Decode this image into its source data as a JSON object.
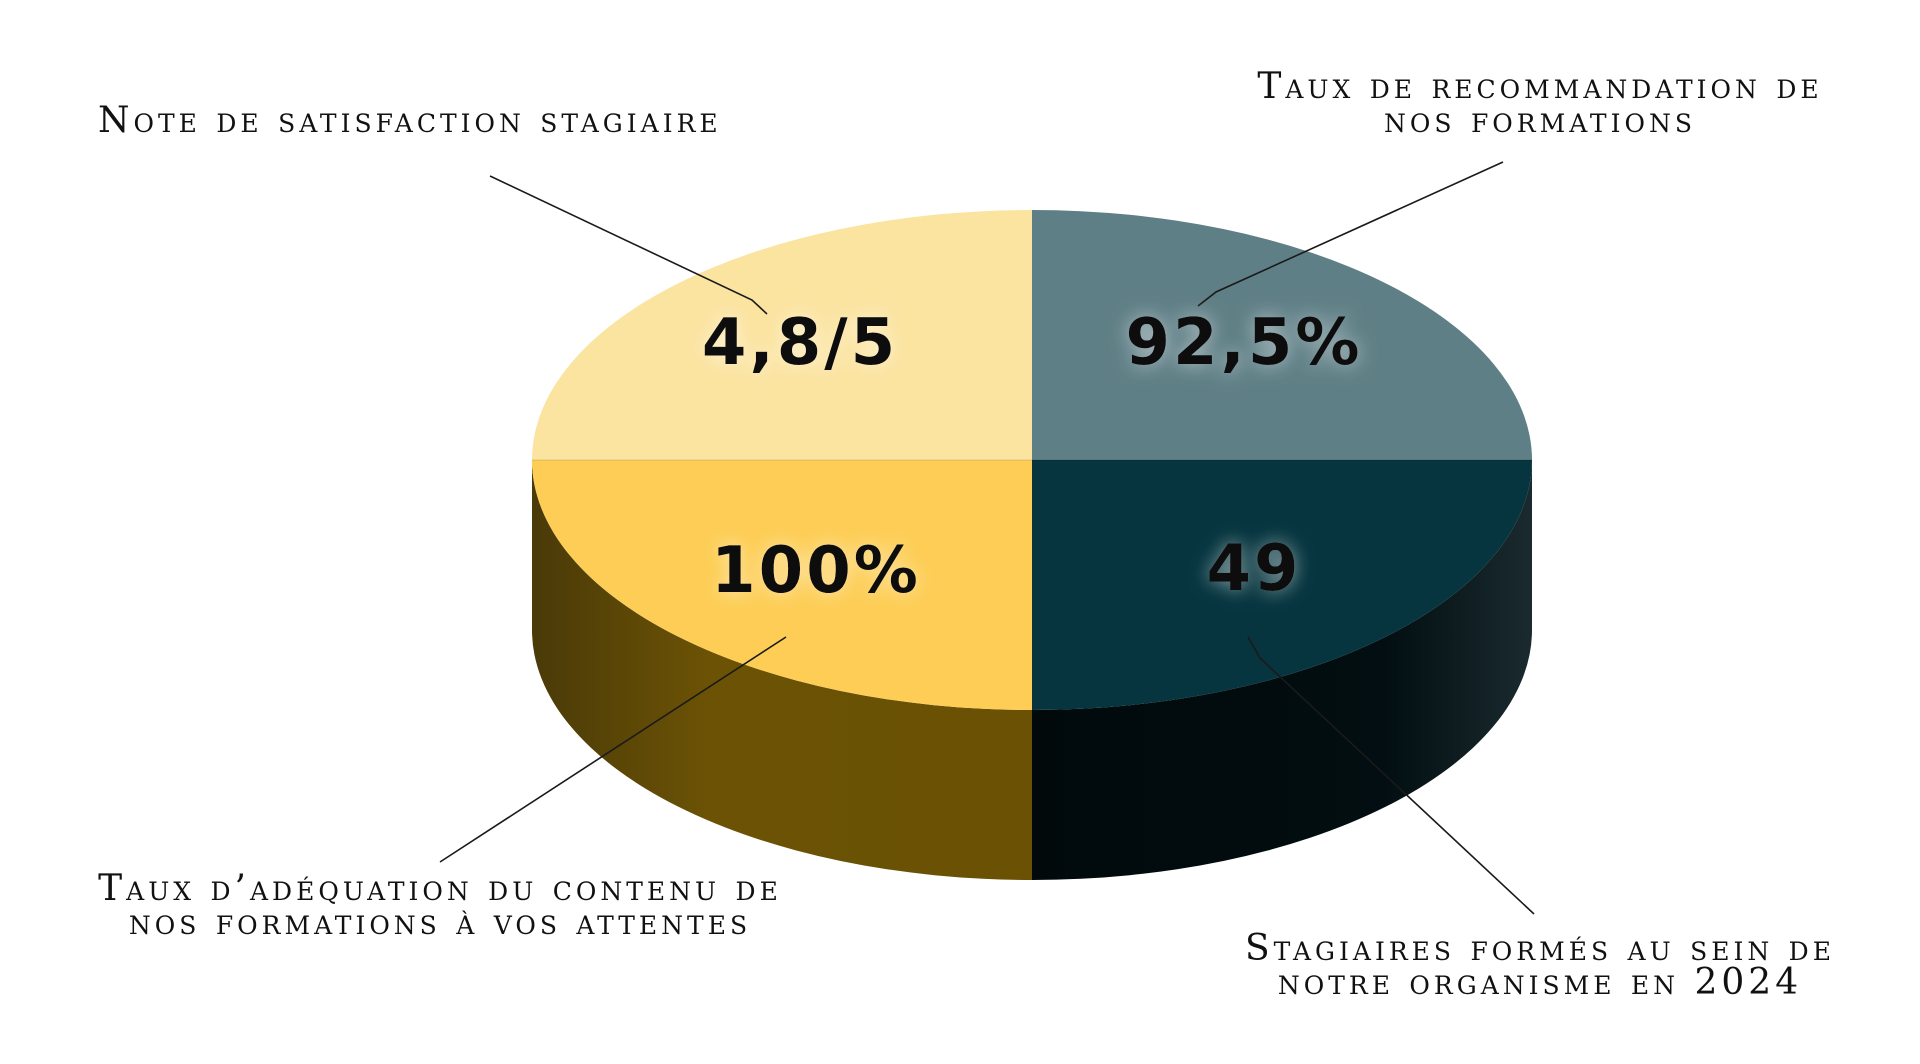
{
  "chart_data": {
    "type": "pie",
    "style": "3d",
    "slices": [
      {
        "value_label": "4,8/5",
        "label_lines": [
          "Note de satisfaction stagiaire"
        ],
        "color": "#FBE3A0",
        "side_color": "#8A7440",
        "position": "top-left"
      },
      {
        "value_label": "92,5%",
        "label_lines": [
          "Taux de recommandation de",
          "nos formations"
        ],
        "color": "#5F7F86",
        "side_color": "#0E1A1D",
        "position": "top-right"
      },
      {
        "value_label": "49",
        "label_lines": [
          "Stagiaires formés au sein de",
          "notre organisme en 2024"
        ],
        "color": "#06353F",
        "side_color": "#020D10",
        "position": "bottom-right"
      },
      {
        "value_label": "100%",
        "label_lines": [
          "Taux d’adéquation du contenu de",
          "nos formations à vos attentes"
        ],
        "color": "#FDCD55",
        "side_color": "#6B5205",
        "position": "bottom-left"
      }
    ]
  }
}
